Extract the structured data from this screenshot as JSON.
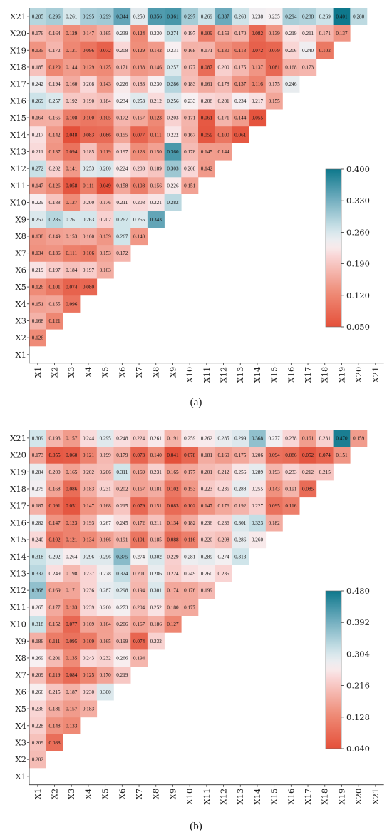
{
  "captions": [
    "(a)",
    "(b)"
  ],
  "chart_data": [
    {
      "type": "heatmap",
      "title": "",
      "labels": [
        "X1",
        "X2",
        "X3",
        "X4",
        "X5",
        "X6",
        "X7",
        "X8",
        "X9",
        "X10",
        "X11",
        "X12",
        "X13",
        "X14",
        "X15",
        "X16",
        "X17",
        "X18",
        "X19",
        "X20",
        "X21"
      ],
      "colorbar": {
        "min": 0.05,
        "max": 0.4,
        "ticks": [
          "0.400",
          "0.330",
          "0.260",
          "0.190",
          "0.120",
          "0.050"
        ]
      },
      "lower_triangle": [
        [],
        [
          0.126
        ],
        [
          0.168,
          0.121
        ],
        [
          0.151,
          0.155,
          0.096
        ],
        [
          0.126,
          0.101,
          0.074,
          0.08
        ],
        [
          0.219,
          0.197,
          0.184,
          0.197,
          0.163
        ],
        [
          0.134,
          0.136,
          0.111,
          0.106,
          0.153,
          0.172
        ],
        [
          0.138,
          0.149,
          0.153,
          0.16,
          0.139,
          0.267,
          0.14
        ],
        [
          0.257,
          0.285,
          0.261,
          0.263,
          0.202,
          0.267,
          0.255,
          0.343
        ],
        [
          0.229,
          0.188,
          0.127,
          0.2,
          0.176,
          0.211,
          0.208,
          0.221,
          0.282
        ],
        [
          0.147,
          0.126,
          0.058,
          0.111,
          0.049,
          0.158,
          0.108,
          0.156,
          0.226,
          0.151
        ],
        [
          0.272,
          0.202,
          0.141,
          0.253,
          0.26,
          0.224,
          0.203,
          0.189,
          0.303,
          0.208,
          0.142
        ],
        [
          0.211,
          0.137,
          0.094,
          0.185,
          0.119,
          0.197,
          0.128,
          0.15,
          0.36,
          0.178,
          0.145,
          0.144
        ],
        [
          0.217,
          0.142,
          0.048,
          0.083,
          0.086,
          0.155,
          0.077,
          0.111,
          0.222,
          0.167,
          0.059,
          0.1,
          0.061
        ],
        [
          0.164,
          0.165,
          0.108,
          0.1,
          0.105,
          0.172,
          0.157,
          0.123,
          0.203,
          0.171,
          0.061,
          0.171,
          0.144,
          0.055
        ],
        [
          0.269,
          0.257,
          0.192,
          0.19,
          0.184,
          0.234,
          0.253,
          0.212,
          0.256,
          0.233,
          0.208,
          0.201,
          0.234,
          0.217,
          0.155
        ],
        [
          0.242,
          0.194,
          0.16,
          0.208,
          0.143,
          0.226,
          0.183,
          0.23,
          0.286,
          0.183,
          0.161,
          0.178,
          0.137,
          0.116,
          0.175,
          0.246
        ],
        [
          0.185,
          0.12,
          0.144,
          0.129,
          0.125,
          0.171,
          0.138,
          0.146,
          0.257,
          0.177,
          0.087,
          0.2,
          0.175,
          0.137,
          0.081,
          0.168,
          0.173
        ],
        [
          0.135,
          0.172,
          0.121,
          0.096,
          0.072,
          0.208,
          0.129,
          0.142,
          0.231,
          0.168,
          0.171,
          0.13,
          0.113,
          0.072,
          0.079,
          0.206,
          0.24,
          0.102
        ],
        [
          0.176,
          0.164,
          0.129,
          0.147,
          0.165,
          0.239,
          0.124,
          0.23,
          0.274,
          0.197,
          0.109,
          0.159,
          0.17,
          0.082,
          0.139,
          0.219,
          0.211,
          0.171,
          0.137
        ],
        [
          0.285,
          0.296,
          0.261,
          0.295,
          0.299,
          0.344,
          0.25,
          0.356,
          0.361,
          0.297,
          0.269,
          0.337,
          0.268,
          0.238,
          0.235,
          0.294,
          0.288,
          0.269,
          0.401,
          0.28
        ]
      ]
    },
    {
      "type": "heatmap",
      "title": "",
      "labels": [
        "X1",
        "X2",
        "X3",
        "X4",
        "X5",
        "X6",
        "X7",
        "X8",
        "X9",
        "X10",
        "X11",
        "X12",
        "X13",
        "X14",
        "X15",
        "X16",
        "X17",
        "X18",
        "X19",
        "X20",
        "X21"
      ],
      "colorbar": {
        "min": 0.04,
        "max": 0.48,
        "ticks": [
          "0.480",
          "0.392",
          "0.304",
          "0.216",
          "0.128",
          "0.040"
        ]
      },
      "lower_triangle": [
        [],
        [
          0.202
        ],
        [
          0.209,
          0.088
        ],
        [
          0.228,
          0.148,
          0.133
        ],
        [
          0.236,
          0.181,
          0.157,
          0.183
        ],
        [
          0.266,
          0.215,
          0.187,
          0.23,
          0.3
        ],
        [
          0.209,
          0.119,
          0.084,
          0.125,
          0.17,
          0.219
        ],
        [
          0.269,
          0.201,
          0.135,
          0.243,
          0.232,
          0.266,
          0.194
        ],
        [
          0.186,
          0.111,
          0.095,
          0.109,
          0.165,
          0.199,
          0.074,
          0.232
        ],
        [
          0.318,
          0.152,
          0.077,
          0.169,
          0.164,
          0.206,
          0.167,
          0.186,
          0.127
        ],
        [
          0.265,
          0.177,
          0.133,
          0.239,
          0.26,
          0.273,
          0.204,
          0.252,
          0.18,
          0.177
        ],
        [
          0.368,
          0.169,
          0.171,
          0.236,
          0.287,
          0.298,
          0.194,
          0.301,
          0.174,
          0.176,
          0.199
        ],
        [
          0.332,
          0.249,
          0.198,
          0.237,
          0.278,
          0.324,
          0.201,
          0.286,
          0.224,
          0.249,
          0.26,
          0.235
        ],
        [
          0.318,
          0.292,
          0.264,
          0.296,
          0.296,
          0.375,
          0.274,
          0.302,
          0.229,
          0.281,
          0.289,
          0.274,
          0.313
        ],
        [
          0.24,
          0.102,
          0.121,
          0.134,
          0.166,
          0.191,
          0.101,
          0.185,
          0.088,
          0.116,
          0.22,
          0.208,
          0.286,
          0.26
        ],
        [
          0.282,
          0.147,
          0.123,
          0.193,
          0.267,
          0.245,
          0.172,
          0.211,
          0.134,
          0.182,
          0.236,
          0.236,
          0.301,
          0.323,
          0.182
        ],
        [
          0.187,
          0.091,
          0.051,
          0.147,
          0.168,
          0.215,
          0.079,
          0.151,
          0.083,
          0.102,
          0.147,
          0.176,
          0.192,
          0.227,
          0.095,
          0.116
        ],
        [
          0.275,
          0.168,
          0.086,
          0.183,
          0.231,
          0.202,
          0.167,
          0.181,
          0.102,
          0.153,
          0.223,
          0.236,
          0.288,
          0.255,
          0.143,
          0.191,
          0.085
        ],
        [
          0.284,
          0.2,
          0.165,
          0.202,
          0.206,
          0.311,
          0.169,
          0.231,
          0.165,
          0.177,
          0.201,
          0.212,
          0.256,
          0.289,
          0.193,
          0.233,
          0.212,
          0.215
        ],
        [
          0.173,
          0.055,
          0.06,
          0.121,
          0.199,
          0.179,
          0.073,
          0.14,
          0.041,
          0.078,
          0.181,
          0.16,
          0.175,
          0.206,
          0.094,
          0.086,
          0.052,
          0.074,
          0.151
        ],
        [
          0.309,
          0.193,
          0.157,
          0.244,
          0.295,
          0.248,
          0.224,
          0.261,
          0.191,
          0.259,
          0.262,
          0.285,
          0.299,
          0.368,
          0.277,
          0.238,
          0.161,
          0.231,
          0.47,
          0.159
        ]
      ]
    }
  ]
}
